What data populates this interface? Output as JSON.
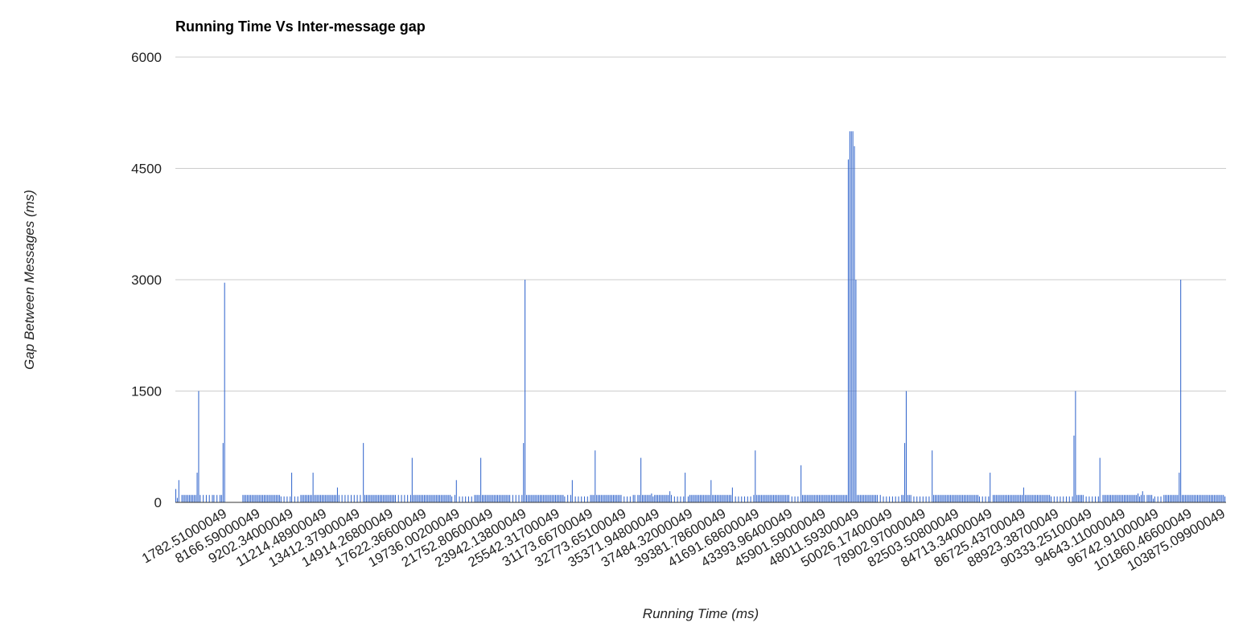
{
  "chart_data": {
    "type": "bar",
    "title": "Running Time Vs Inter-message gap",
    "xlabel": "Running Time (ms)",
    "ylabel": "Gap Between Messages (ms)",
    "ylim": [
      0,
      6000
    ],
    "yticks": [
      "0",
      "1500",
      "3000",
      "4500",
      "6000"
    ],
    "grid": true,
    "legend": "none",
    "bar_color": "#3366cc",
    "x_tick_labels": [
      "1782.51000049",
      "8166.59000049",
      "9202.34000049",
      "11214.48900049",
      "13412.37900049",
      "14914.26800049",
      "17622.36600049",
      "19736.00200049",
      "21752.80600049",
      "23942.13800049",
      "25542.31700049",
      "31173.66700049",
      "32773.65100049",
      "35371.94800049",
      "37484.32000049",
      "39381.78600049",
      "41691.68600049",
      "43393.96400049",
      "45901.59000049",
      "48011.59300049",
      "50026.17400049",
      "78902.97000049",
      "82503.50800049",
      "84713.34000049",
      "86725.43700049",
      "88923.38700049",
      "90333.25100049",
      "94643.11000049",
      "96742.91000049",
      "101860.46600049",
      "103875.09900049"
    ],
    "values": [
      180,
      60,
      300,
      0,
      100,
      100,
      100,
      100,
      100,
      100,
      100,
      100,
      100,
      100,
      400,
      1500,
      100,
      0,
      100,
      0,
      100,
      0,
      100,
      0,
      100,
      100,
      0,
      100,
      0,
      100,
      100,
      800,
      2960,
      0,
      0,
      0,
      0,
      0,
      0,
      0,
      0,
      0,
      0,
      0,
      100,
      100,
      100,
      100,
      100,
      100,
      100,
      100,
      100,
      100,
      100,
      100,
      100,
      100,
      100,
      100,
      100,
      100,
      100,
      100,
      100,
      100,
      100,
      100,
      100,
      80,
      0,
      80,
      0,
      80,
      0,
      80,
      400,
      0,
      80,
      0,
      80,
      0,
      100,
      100,
      100,
      100,
      100,
      100,
      100,
      100,
      400,
      100,
      100,
      100,
      100,
      100,
      100,
      100,
      100,
      100,
      100,
      100,
      100,
      100,
      100,
      100,
      200,
      100,
      0,
      100,
      0,
      100,
      0,
      100,
      0,
      100,
      0,
      100,
      0,
      100,
      0,
      100,
      0,
      800,
      100,
      100,
      100,
      100,
      100,
      100,
      100,
      100,
      100,
      100,
      100,
      100,
      100,
      100,
      100,
      100,
      100,
      100,
      100,
      100,
      100,
      0,
      100,
      0,
      100,
      0,
      100,
      0,
      100,
      0,
      100,
      600,
      100,
      100,
      100,
      100,
      100,
      100,
      100,
      100,
      100,
      100,
      100,
      100,
      100,
      100,
      100,
      100,
      100,
      100,
      100,
      100,
      100,
      100,
      100,
      100,
      100,
      80,
      0,
      100,
      300,
      0,
      80,
      0,
      80,
      0,
      80,
      0,
      80,
      0,
      80,
      0,
      100,
      100,
      100,
      100,
      600,
      100,
      100,
      100,
      100,
      100,
      100,
      100,
      100,
      100,
      100,
      100,
      100,
      100,
      100,
      100,
      100,
      100,
      100,
      100,
      0,
      100,
      0,
      100,
      0,
      100,
      0,
      100,
      800,
      3000,
      100,
      100,
      100,
      100,
      100,
      100,
      100,
      100,
      100,
      100,
      100,
      100,
      100,
      100,
      100,
      100,
      100,
      100,
      100,
      100,
      100,
      100,
      100,
      100,
      100,
      80,
      0,
      100,
      0,
      100,
      300,
      0,
      80,
      0,
      80,
      0,
      80,
      0,
      80,
      0,
      80,
      0,
      100,
      100,
      100,
      700,
      100,
      100,
      100,
      100,
      100,
      100,
      100,
      100,
      100,
      100,
      100,
      100,
      100,
      100,
      100,
      100,
      100,
      0,
      80,
      0,
      80,
      0,
      80,
      0,
      100,
      100,
      0,
      100,
      100,
      600,
      100,
      100,
      100,
      100,
      100,
      100,
      120,
      80,
      100,
      100,
      100,
      100,
      100,
      100,
      100,
      100,
      100,
      100,
      150,
      100,
      0,
      80,
      0,
      80,
      0,
      80,
      0,
      80,
      400,
      0,
      80,
      100,
      100,
      100,
      100,
      100,
      100,
      100,
      100,
      100,
      100,
      100,
      100,
      100,
      100,
      300,
      100,
      100,
      100,
      100,
      100,
      100,
      100,
      100,
      100,
      100,
      100,
      100,
      100,
      200,
      0,
      80,
      0,
      80,
      0,
      80,
      0,
      80,
      0,
      80,
      0,
      80,
      0,
      100,
      700,
      100,
      100,
      100,
      100,
      100,
      100,
      100,
      100,
      100,
      100,
      100,
      100,
      100,
      100,
      100,
      100,
      100,
      100,
      100,
      100,
      100,
      100,
      0,
      80,
      0,
      80,
      0,
      80,
      0,
      500,
      100,
      100,
      100,
      100,
      100,
      100,
      100,
      100,
      100,
      100,
      100,
      100,
      100,
      100,
      100,
      100,
      100,
      100,
      100,
      100,
      100,
      100,
      100,
      100,
      100,
      100,
      100,
      100,
      100,
      100,
      4620,
      5000,
      5000,
      5000,
      4800,
      3000,
      100,
      100,
      100,
      100,
      100,
      100,
      100,
      100,
      100,
      100,
      100,
      100,
      100,
      100,
      0,
      100,
      0,
      80,
      0,
      80,
      0,
      80,
      0,
      80,
      0,
      80,
      0,
      80,
      0,
      100,
      100,
      800,
      1500,
      100,
      100,
      100,
      0,
      80,
      0,
      80,
      0,
      80,
      0,
      80,
      0,
      80,
      0,
      80,
      0,
      700,
      100,
      100,
      100,
      100,
      100,
      100,
      100,
      100,
      100,
      100,
      100,
      100,
      100,
      100,
      100,
      100,
      100,
      100,
      100,
      100,
      100,
      100,
      100,
      100,
      100,
      100,
      100,
      100,
      100,
      100,
      80,
      0,
      80,
      0,
      80,
      0,
      80,
      400,
      0,
      100,
      100,
      100,
      100,
      100,
      100,
      100,
      100,
      100,
      100,
      100,
      100,
      100,
      100,
      100,
      100,
      100,
      100,
      100,
      100,
      200,
      100,
      100,
      100,
      100,
      100,
      100,
      100,
      100,
      100,
      100,
      100,
      100,
      100,
      100,
      100,
      100,
      100,
      80,
      0,
      80,
      0,
      80,
      0,
      80,
      0,
      80,
      0,
      80,
      0,
      80,
      0,
      80,
      900,
      1500,
      100,
      100,
      100,
      100,
      100,
      0,
      80,
      0,
      80,
      0,
      80,
      0,
      80,
      0,
      80,
      600,
      0,
      100,
      100,
      100,
      100,
      100,
      100,
      100,
      100,
      100,
      100,
      100,
      100,
      100,
      100,
      100,
      100,
      100,
      100,
      100,
      100,
      100,
      100,
      100,
      120,
      80,
      100,
      150,
      100,
      0,
      100,
      100,
      100,
      100,
      50,
      80,
      0,
      80,
      0,
      80,
      0,
      100,
      100,
      100,
      100,
      100,
      100,
      100,
      100,
      100,
      100,
      400,
      3000,
      100,
      100,
      100,
      100,
      100,
      100,
      100,
      100,
      100,
      100,
      100,
      100,
      100,
      100,
      100,
      100,
      100,
      100,
      100,
      100,
      100,
      100,
      100,
      100,
      100,
      100,
      100,
      100,
      80
    ]
  }
}
